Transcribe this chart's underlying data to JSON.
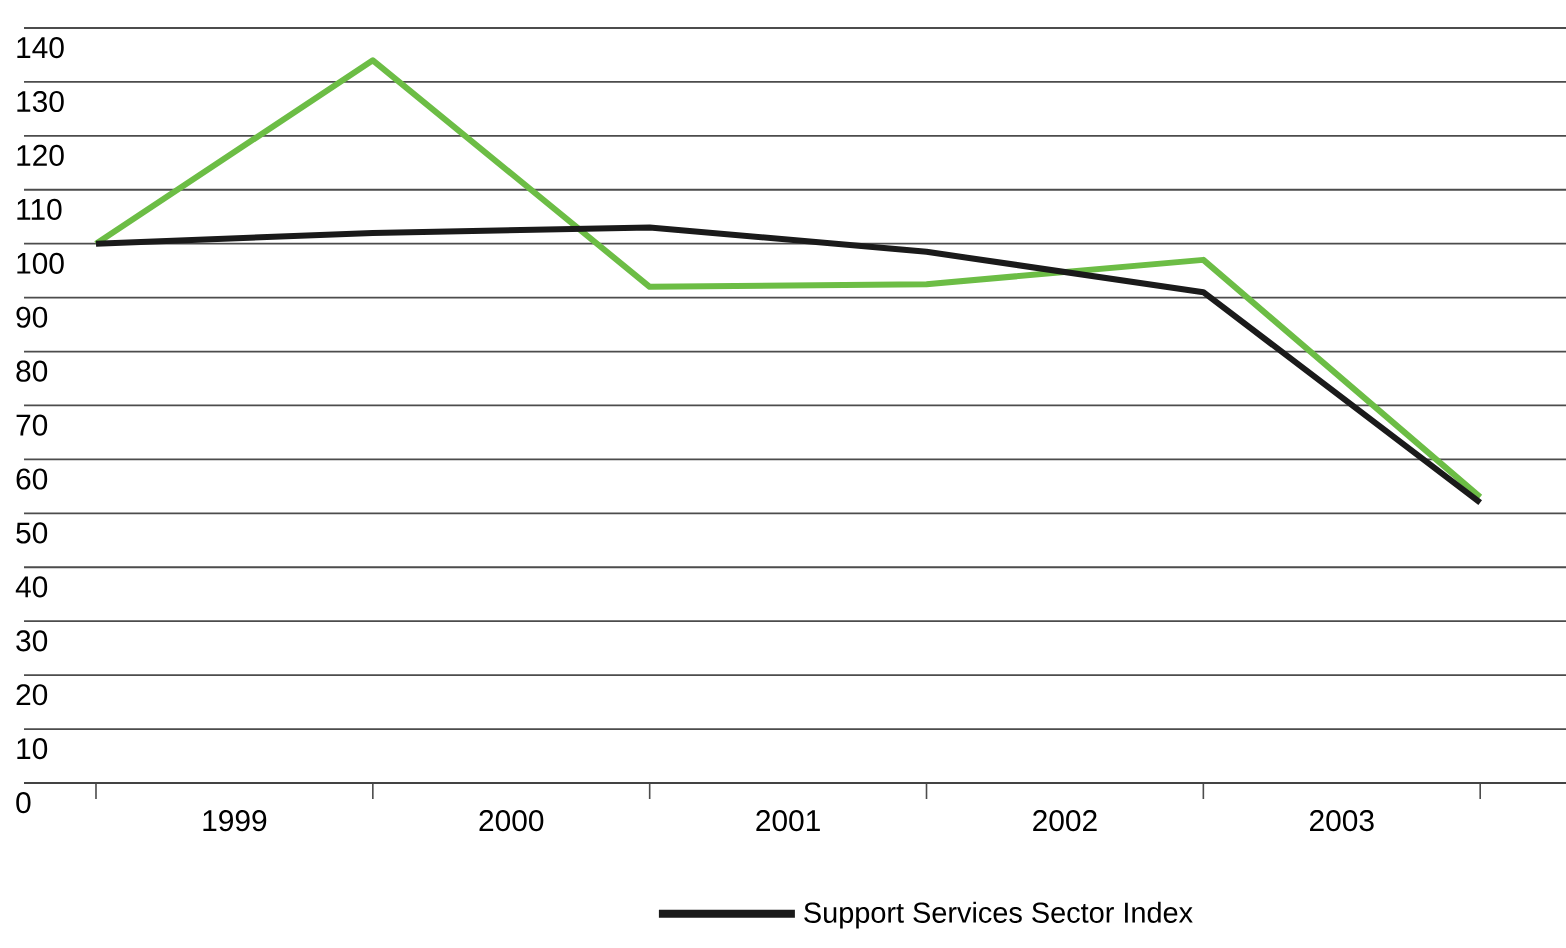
{
  "chart_data": {
    "type": "line",
    "x": [
      1999,
      2000,
      2001,
      2002,
      2003,
      2004
    ],
    "series": [
      {
        "color": "#6cbd45",
        "values": [
          100,
          134,
          92,
          92.5,
          97,
          53
        ]
      },
      {
        "name": "Support Services Sector Index",
        "color": "#1a1a1a",
        "values": [
          100,
          102,
          103,
          98.5,
          91,
          52
        ]
      }
    ],
    "xlim": [
      1998.74,
      2004.31
    ],
    "xticks": [
      {
        "value": 1999,
        "label": null
      },
      {
        "value": 1999.5,
        "label": "1999"
      },
      {
        "value": 2000,
        "label": null
      },
      {
        "value": 2000.5,
        "label": "2000"
      },
      {
        "value": 2001,
        "label": null
      },
      {
        "value": 2001.5,
        "label": "2001"
      },
      {
        "value": 2002,
        "label": null
      },
      {
        "value": 2002.5,
        "label": "2002"
      },
      {
        "value": 2003,
        "label": null
      },
      {
        "value": 2003.5,
        "label": "2003"
      },
      {
        "value": 2004,
        "label": null
      }
    ],
    "ylim": [
      0,
      140
    ],
    "yticks": [
      0,
      10,
      20,
      30,
      40,
      50,
      60,
      70,
      80,
      90,
      100,
      110,
      120,
      130,
      140
    ],
    "grid": "y",
    "legend": "bottom",
    "line_style": "solid"
  }
}
